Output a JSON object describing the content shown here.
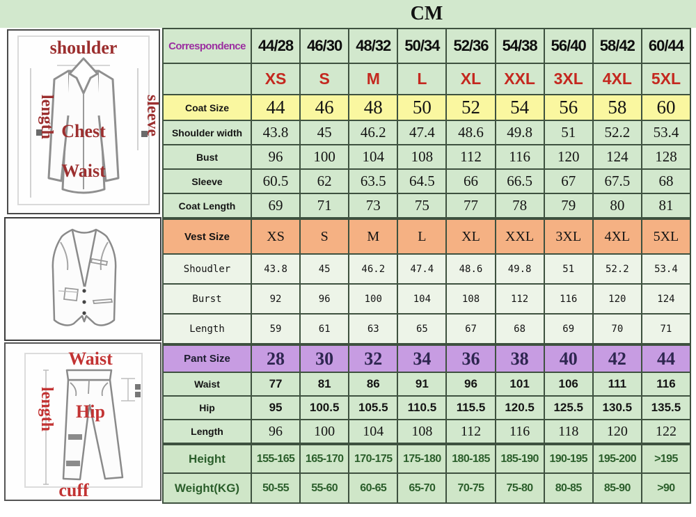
{
  "title": "CM",
  "colors": {
    "table_green": "#d2e8cd",
    "vest_row_green": "#edf4e8",
    "coat_size_yellow": "#faf7a0",
    "vest_size_salmon": "#f5b183",
    "pant_size_purple": "#c79ce2",
    "size_label_red": "#c4281f",
    "correspondence_purple": "#9b2fa0",
    "height_weight_green": "#2b5e2b",
    "grid_border": "#3e513f"
  },
  "diagrams": {
    "jacket": {
      "shoulder": "shoulder",
      "length": "length",
      "sleeve": "sleeve",
      "chest": "Chest",
      "waist": "Waist"
    },
    "pants": {
      "waist": "Waist",
      "length": "length",
      "hip": "Hip",
      "cuff": "cuff"
    }
  },
  "chart_data": {
    "type": "table",
    "title": "CM",
    "unit": "CM",
    "rows": [
      {
        "label": "Correspondence",
        "style": "corr",
        "values": [
          "44/28",
          "46/30",
          "48/32",
          "50/34",
          "52/36",
          "54/38",
          "56/40",
          "58/42",
          "60/44"
        ]
      },
      {
        "label": "",
        "style": "sizes",
        "values": [
          "XS",
          "S",
          "M",
          "L",
          "XL",
          "XXL",
          "3XL",
          "4XL",
          "5XL"
        ]
      },
      {
        "label": "Coat Size",
        "style": "coatsize",
        "values": [
          "44",
          "46",
          "48",
          "50",
          "52",
          "54",
          "56",
          "58",
          "60"
        ]
      },
      {
        "label": "Shoulder width",
        "style": "coat",
        "values": [
          "43.8",
          "45",
          "46.2",
          "47.4",
          "48.6",
          "49.8",
          "51",
          "52.2",
          "53.4"
        ]
      },
      {
        "label": "Bust",
        "style": "coat",
        "values": [
          "96",
          "100",
          "104",
          "108",
          "112",
          "116",
          "120",
          "124",
          "128"
        ]
      },
      {
        "label": "Sleeve",
        "style": "coat",
        "values": [
          "60.5",
          "62",
          "63.5",
          "64.5",
          "66",
          "66.5",
          "67",
          "67.5",
          "68"
        ]
      },
      {
        "label": "Coat Length",
        "style": "coat",
        "values": [
          "69",
          "71",
          "73",
          "75",
          "77",
          "78",
          "79",
          "80",
          "81"
        ]
      },
      {
        "label": "Vest Size",
        "style": "vesthead",
        "values": [
          "XS",
          "S",
          "M",
          "L",
          "XL",
          "XXL",
          "3XL",
          "4XL",
          "5XL"
        ]
      },
      {
        "label": "Shoudler",
        "style": "vest",
        "values": [
          "43.8",
          "45",
          "46.2",
          "47.4",
          "48.6",
          "49.8",
          "51",
          "52.2",
          "53.4"
        ]
      },
      {
        "label": "Burst",
        "style": "vest",
        "values": [
          "92",
          "96",
          "100",
          "104",
          "108",
          "112",
          "116",
          "120",
          "124"
        ]
      },
      {
        "label": "Length",
        "style": "vest",
        "values": [
          "59",
          "61",
          "63",
          "65",
          "67",
          "68",
          "69",
          "70",
          "71"
        ]
      },
      {
        "label": "Pant Size",
        "style": "panthead",
        "values": [
          "28",
          "30",
          "32",
          "34",
          "36",
          "38",
          "40",
          "42",
          "44"
        ]
      },
      {
        "label": "Waist",
        "style": "pant",
        "values": [
          "77",
          "81",
          "86",
          "91",
          "96",
          "101",
          "106",
          "111",
          "116"
        ]
      },
      {
        "label": "Hip",
        "style": "pant",
        "values": [
          "95",
          "100.5",
          "105.5",
          "110.5",
          "115.5",
          "120.5",
          "125.5",
          "130.5",
          "135.5"
        ]
      },
      {
        "label": "Length",
        "style": "pantlen",
        "values": [
          "96",
          "100",
          "104",
          "108",
          "112",
          "116",
          "118",
          "120",
          "122"
        ]
      },
      {
        "label": "Height",
        "style": "hw",
        "values": [
          "155-165",
          "165-170",
          "170-175",
          "175-180",
          "180-185",
          "185-190",
          "190-195",
          "195-200",
          ">195"
        ]
      },
      {
        "label": "Weight(KG)",
        "style": "hw",
        "values": [
          "50-55",
          "55-60",
          "60-65",
          "65-70",
          "70-75",
          "75-80",
          "80-85",
          "85-90",
          ">90"
        ]
      }
    ]
  }
}
